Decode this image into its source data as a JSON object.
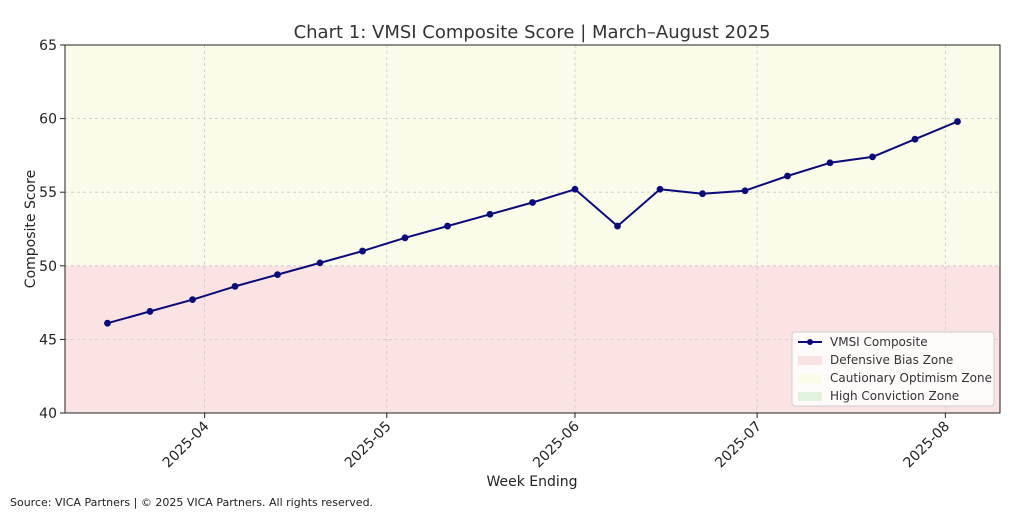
{
  "chart_data": {
    "type": "line",
    "title": "Chart 1: VMSI Composite Score | March–August 2025",
    "xlabel": "Week Ending",
    "ylabel": "Composite Score",
    "ylim": [
      40,
      65
    ],
    "yticks": [
      40,
      45,
      50,
      55,
      60,
      65
    ],
    "xlim": [
      "2025-03-09",
      "2025-08-10"
    ],
    "xticks": [
      "2025-04-01",
      "2025-05-01",
      "2025-06-01",
      "2025-07-01",
      "2025-08-01"
    ],
    "xtick_labels": [
      "2025-04",
      "2025-05",
      "2025-06",
      "2025-07",
      "2025-08"
    ],
    "grid": true,
    "legend_position": "bottom-right",
    "zones": [
      {
        "name": "Defensive Bias Zone",
        "range": [
          40,
          50
        ],
        "color": "#fbe3e3"
      },
      {
        "name": "Cautionary Optimism Zone",
        "range": [
          50,
          65
        ],
        "color": "#fbfbea"
      },
      {
        "name": "High Conviction Zone",
        "range": null,
        "color": "#e2f3dd"
      }
    ],
    "series": [
      {
        "name": "VMSI Composite",
        "color": "#0a0a7a",
        "x": [
          "2025-03-16",
          "2025-03-23",
          "2025-03-30",
          "2025-04-06",
          "2025-04-13",
          "2025-04-20",
          "2025-04-27",
          "2025-05-04",
          "2025-05-11",
          "2025-05-18",
          "2025-05-25",
          "2025-06-01",
          "2025-06-08",
          "2025-06-15",
          "2025-06-22",
          "2025-06-29",
          "2025-07-06",
          "2025-07-13",
          "2025-07-20",
          "2025-07-27",
          "2025-08-03"
        ],
        "values": [
          46.1,
          46.9,
          47.7,
          48.6,
          49.4,
          50.2,
          51.0,
          51.9,
          52.7,
          53.5,
          54.3,
          55.2,
          52.7,
          55.2,
          54.9,
          55.1,
          56.1,
          57.0,
          57.4,
          58.6,
          59.8
        ]
      }
    ]
  },
  "footer": {
    "source": "Source: VICA Partners | © 2025 VICA Partners. All rights reserved."
  }
}
